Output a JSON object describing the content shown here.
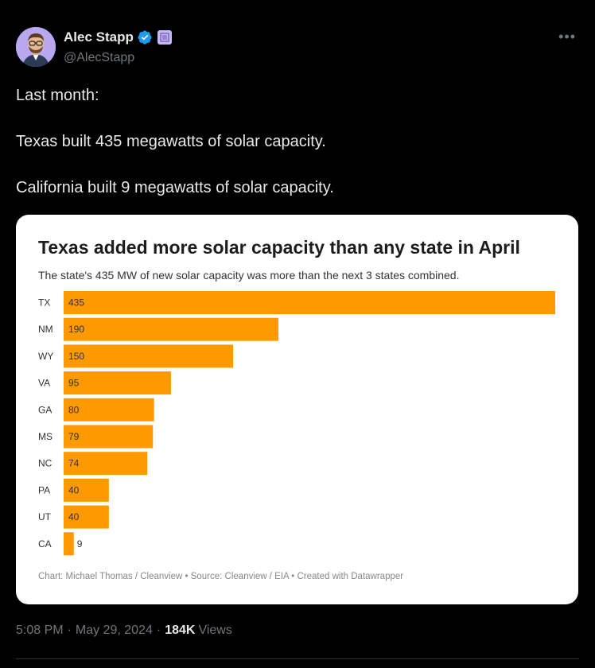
{
  "author": {
    "display_name": "Alec Stapp",
    "handle": "@AlecStapp",
    "verified": true,
    "avatar": "avatar-cartoon-man-glasses",
    "affiliate_badge": "building-icon"
  },
  "menu_icon": "more-horizontal-icon",
  "tweet": {
    "lines": [
      "Last month:",
      "Texas built 435 megawatts of solar capacity.",
      "California built 9 megawatts of solar capacity."
    ]
  },
  "colors": {
    "bar": "#ff9900",
    "background": "#000000",
    "card": "#ffffff",
    "verified": "#1d9bf0"
  },
  "chart_data": {
    "type": "bar",
    "orientation": "horizontal",
    "title": "Texas added more solar capacity than any state in April",
    "subtitle": "The state's 435 MW of new solar capacity was more than the next 3 states combined.",
    "categories": [
      "TX",
      "NM",
      "WY",
      "VA",
      "GA",
      "MS",
      "NC",
      "PA",
      "UT",
      "CA"
    ],
    "values": [
      435,
      190,
      150,
      95,
      80,
      79,
      74,
      40,
      40,
      9
    ],
    "xlim": [
      0,
      435
    ],
    "grid": false,
    "legend": "none",
    "source": "Chart: Michael Thomas / Cleanview • Source: Cleanview / EIA • Created with Datawrapper"
  },
  "meta": {
    "time": "5:08 PM",
    "date": "May 29, 2024",
    "views_count": "184K",
    "views_label": "Views"
  }
}
